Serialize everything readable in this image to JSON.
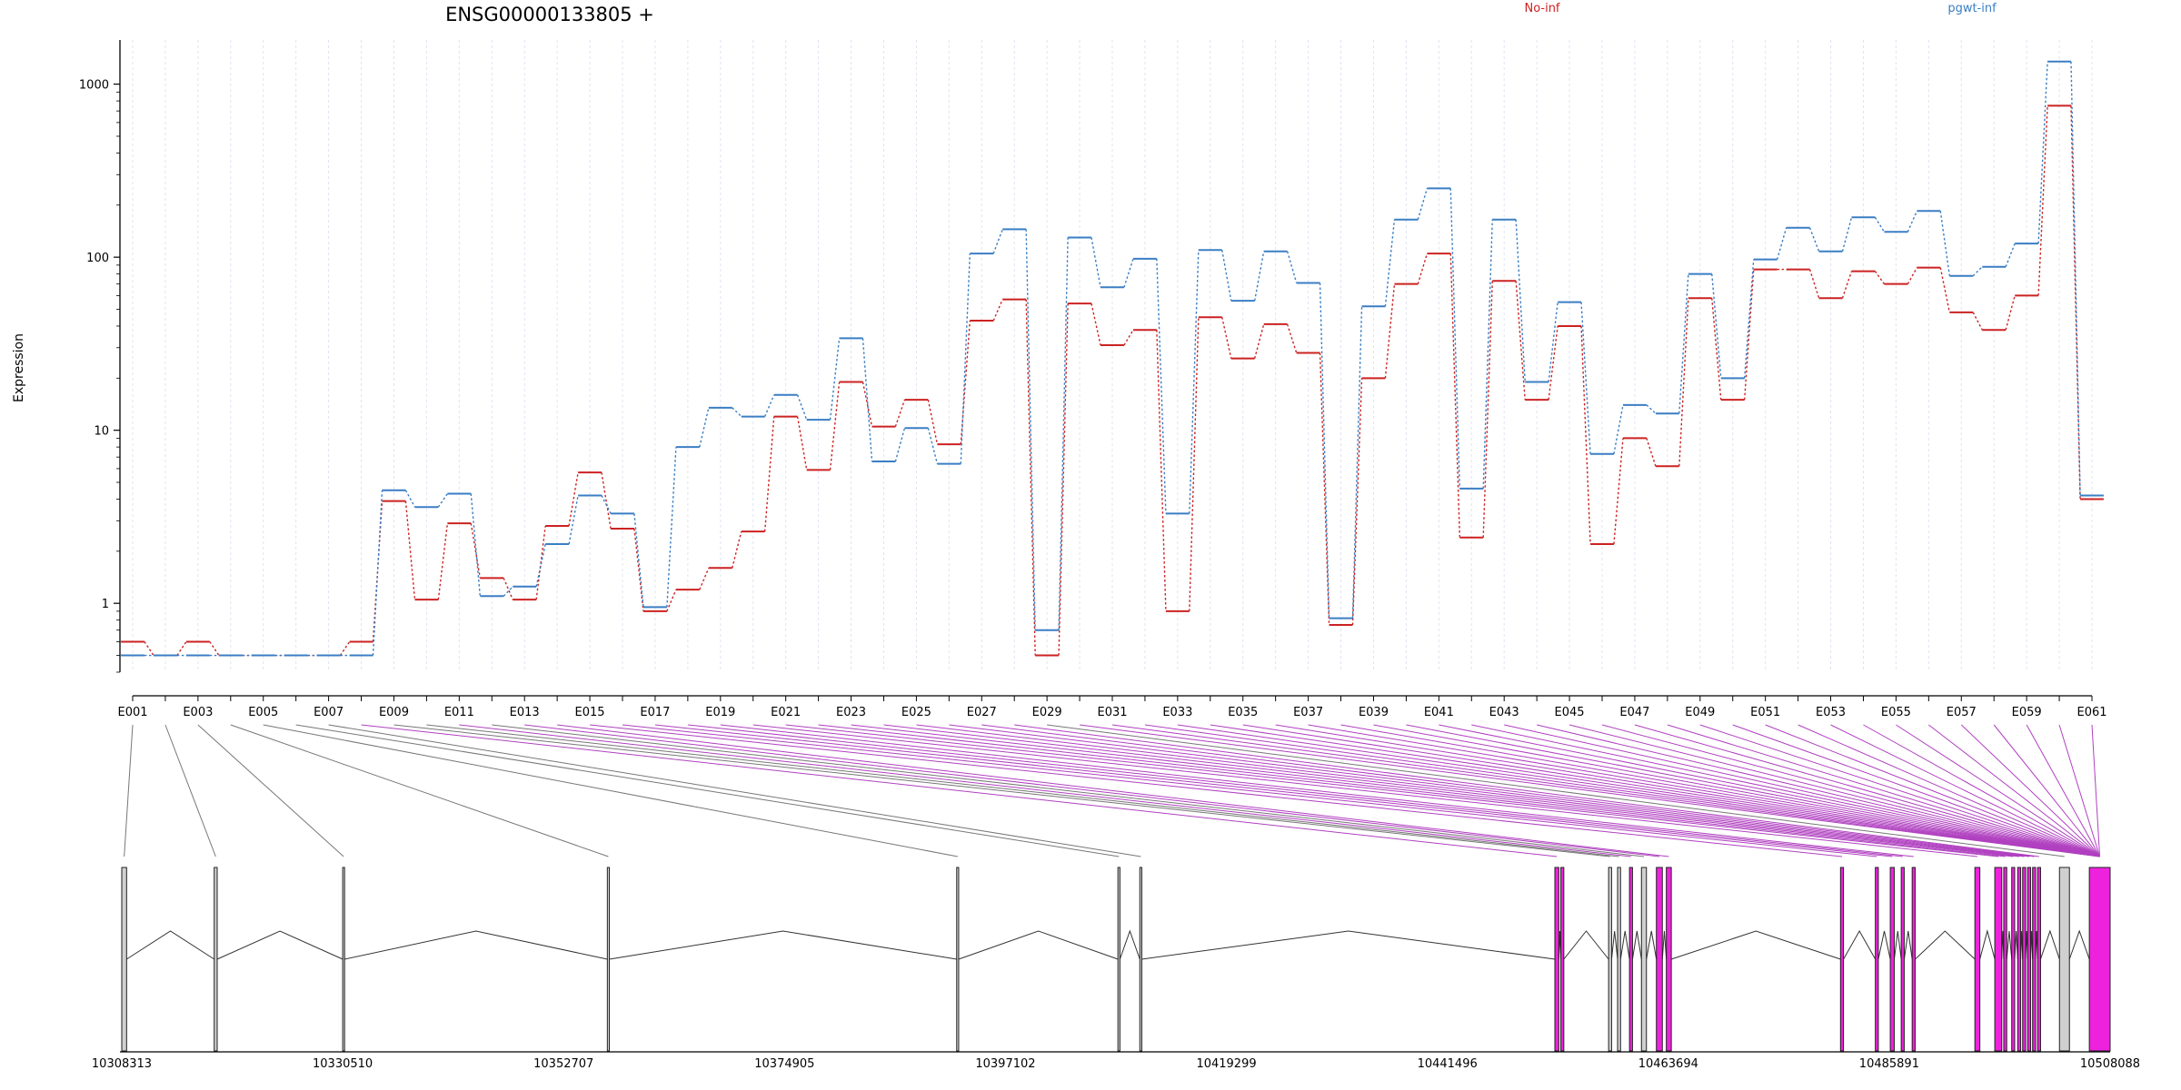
{
  "title": "ENSG00000133805 +",
  "colors": {
    "series0": "#cc2222",
    "series1": "#3a7ec4",
    "exon_highlight": "#ee22dd",
    "exon_plain": "#d0d0d0",
    "connector_plain": "#777777",
    "connector_highlight": "#b040c0"
  },
  "chart_data": {
    "type": "line",
    "title": "ENSG00000133805 +",
    "xlabel": "",
    "ylabel": "Expression",
    "yscale": "log",
    "ylim": [
      0.4,
      1800
    ],
    "yticks": [
      1,
      10,
      100,
      1000
    ],
    "ytick_labels": [
      "1",
      "10",
      "100",
      "1000"
    ],
    "grid": "vertical-dashed",
    "legend_placement": "top",
    "categories": [
      "E001",
      "E002",
      "E003",
      "E004",
      "E005",
      "E006",
      "E007",
      "E008",
      "E009",
      "E010",
      "E011",
      "E012",
      "E013",
      "E014",
      "E015",
      "E016",
      "E017",
      "E018",
      "E019",
      "E020",
      "E021",
      "E022",
      "E023",
      "E024",
      "E025",
      "E026",
      "E027",
      "E028",
      "E029",
      "E030",
      "E031",
      "E032",
      "E033",
      "E034",
      "E035",
      "E036",
      "E037",
      "E038",
      "E039",
      "E040",
      "E041",
      "E042",
      "E043",
      "E044",
      "E045",
      "E046",
      "E047",
      "E048",
      "E049",
      "E050",
      "E051",
      "E052",
      "E053",
      "E054",
      "E055",
      "E056",
      "E057",
      "E058",
      "E059",
      "E060",
      "E061"
    ],
    "tick_labels": [
      "E001",
      "E003",
      "E005",
      "E007",
      "E009",
      "E011",
      "E013",
      "E015",
      "E017",
      "E019",
      "E021",
      "E023",
      "E025",
      "E027",
      "E029",
      "E031",
      "E033",
      "E035",
      "E037",
      "E039",
      "E041",
      "E043",
      "E045",
      "E047",
      "E049",
      "E051",
      "E053",
      "E055",
      "E057",
      "E059",
      "E061"
    ],
    "series": [
      {
        "name": "No-inf",
        "color": "#cc2222",
        "values": [
          0.6,
          0.5,
          0.6,
          0.5,
          0.5,
          0.5,
          0.5,
          0.6,
          3.9,
          1.05,
          2.9,
          1.4,
          1.05,
          2.8,
          5.7,
          2.7,
          0.9,
          1.2,
          1.6,
          2.6,
          12,
          5.9,
          19,
          10.5,
          15,
          8.3,
          43,
          57,
          0.5,
          54,
          31,
          38,
          0.9,
          45,
          26,
          41,
          28,
          0.75,
          20,
          70,
          105,
          2.4,
          73,
          15,
          40,
          2.2,
          9,
          6.2,
          58,
          15,
          85,
          85,
          58,
          83,
          70,
          87,
          48,
          38,
          60,
          750,
          4.0
        ]
      },
      {
        "name": "pgwt-inf",
        "color": "#3a7ec4",
        "values": [
          0.5,
          0.5,
          0.5,
          0.5,
          0.5,
          0.5,
          0.5,
          0.5,
          4.5,
          3.6,
          4.3,
          1.1,
          1.25,
          2.2,
          4.2,
          3.3,
          0.95,
          8.0,
          13.5,
          12,
          16,
          11.5,
          34,
          6.6,
          10.3,
          6.4,
          105,
          145,
          0.7,
          130,
          67,
          98,
          3.3,
          110,
          56,
          108,
          71,
          0.82,
          52,
          165,
          250,
          4.6,
          165,
          19,
          55,
          7.3,
          14,
          12.5,
          80,
          20,
          97,
          148,
          108,
          170,
          140,
          185,
          78,
          88,
          120,
          1350,
          4.2
        ]
      }
    ],
    "gene_model": {
      "coord_start": 10308313,
      "coord_end": 10508088,
      "coord_ticks": [
        10308313,
        10330510,
        10352707,
        10374905,
        10397102,
        10419299,
        10441496,
        10463694,
        10485891,
        10508088
      ],
      "coord_tick_labels": [
        "10308313",
        "10330510",
        "10352707",
        "10374905",
        "10397102",
        "10419299",
        "10441496",
        "10463694",
        "10485891",
        "10508088"
      ],
      "exons": [
        {
          "start": 10308313,
          "end": 10308800
        },
        {
          "start": 10317600,
          "end": 10317900
        },
        {
          "start": 10330510,
          "end": 10330700
        },
        {
          "start": 10357100,
          "end": 10357300
        },
        {
          "start": 10392200,
          "end": 10392400
        },
        {
          "start": 10408400,
          "end": 10408600
        },
        {
          "start": 10410600,
          "end": 10410800
        },
        {
          "start": 10452300,
          "end": 10452700
        },
        {
          "start": 10452900,
          "end": 10453200
        },
        {
          "start": 10457700,
          "end": 10458000
        },
        {
          "start": 10458600,
          "end": 10458900
        },
        {
          "start": 10459800,
          "end": 10460100
        },
        {
          "start": 10461000,
          "end": 10461500
        },
        {
          "start": 10462500,
          "end": 10463100
        },
        {
          "start": 10463500,
          "end": 10464000
        },
        {
          "start": 10481000,
          "end": 10481300
        },
        {
          "start": 10484500,
          "end": 10484800
        },
        {
          "start": 10486000,
          "end": 10486400
        },
        {
          "start": 10487100,
          "end": 10487400
        },
        {
          "start": 10488200,
          "end": 10488500
        },
        {
          "start": 10494500,
          "end": 10495000
        },
        {
          "start": 10496500,
          "end": 10497200
        },
        {
          "start": 10497400,
          "end": 10497700
        },
        {
          "start": 10498200,
          "end": 10498500
        },
        {
          "start": 10498800,
          "end": 10499100
        },
        {
          "start": 10499300,
          "end": 10499600
        },
        {
          "start": 10499800,
          "end": 10500100
        },
        {
          "start": 10500300,
          "end": 10500600
        },
        {
          "start": 10500800,
          "end": 10501100
        },
        {
          "start": 10503000,
          "end": 10504000
        },
        {
          "start": 10506000,
          "end": 10508088
        }
      ],
      "highlighted_exons": [
        7,
        8,
        11,
        13,
        14,
        15,
        16,
        17,
        18,
        19,
        20,
        21,
        22,
        23,
        24,
        25,
        26,
        27,
        28,
        30
      ],
      "junction_order": [
        0,
        1,
        2,
        3,
        4,
        5,
        6,
        7,
        9,
        10,
        11,
        12,
        13,
        14,
        15,
        16,
        17,
        18,
        19,
        20,
        21,
        22,
        23,
        24,
        25,
        26,
        27,
        28,
        29,
        30
      ]
    }
  }
}
